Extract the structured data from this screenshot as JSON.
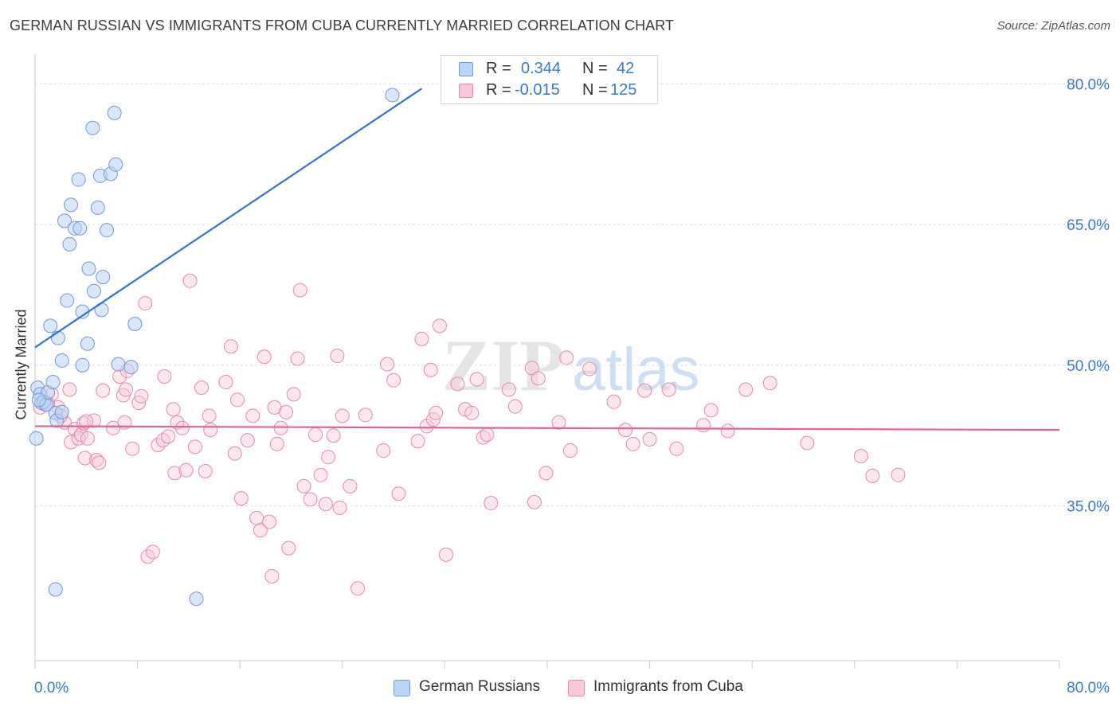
{
  "title": "GERMAN RUSSIAN VS IMMIGRANTS FROM CUBA CURRENTLY MARRIED CORRELATION CHART",
  "source": "Source: ZipAtlas.com",
  "watermark": {
    "zip": "ZIP",
    "atlas": "atlas"
  },
  "legend": {
    "rows": [
      {
        "r_label": "R =",
        "r_value": "0.344",
        "n_label": "N =",
        "n_value": "42",
        "color": "#6d9ad6"
      },
      {
        "r_label": "R =",
        "r_value": "-0.015",
        "n_label": "N =",
        "n_value": "125",
        "color": "#e58aa9"
      }
    ]
  },
  "bottom_legend": [
    {
      "label": "German Russians",
      "color": "#6d9ad6"
    },
    {
      "label": "Immigrants from Cuba",
      "color": "#e58aa9"
    }
  ],
  "chart_data": {
    "type": "scatter",
    "title": "GERMAN RUSSIAN VS IMMIGRANTS FROM CUBA CURRENTLY MARRIED CORRELATION CHART",
    "xlabel": "",
    "ylabel": "Currently Married",
    "xlim": [
      0,
      80
    ],
    "ylim": [
      18.5,
      83
    ],
    "x_tick_labels": [
      "0.0%",
      "80.0%"
    ],
    "y_ticks": [
      {
        "value": 80,
        "label": "80.0%"
      },
      {
        "value": 65,
        "label": "65.0%"
      },
      {
        "value": 50,
        "label": "50.0%"
      },
      {
        "value": 35,
        "label": "35.0%"
      }
    ],
    "series": [
      {
        "name": "German Russians",
        "color": "#6d9ad6",
        "fill": "rgba(188,212,245,0.55)",
        "trend": {
          "x": [
            0,
            30.2
          ],
          "y": [
            51.9,
            79.5
          ]
        },
        "points": [
          [
            0.1,
            42.2
          ],
          [
            0.2,
            47.6
          ],
          [
            0.4,
            46.9
          ],
          [
            0.5,
            46.0
          ],
          [
            0.7,
            46.1
          ],
          [
            0.9,
            45.8
          ],
          [
            1.0,
            47.1
          ],
          [
            1.4,
            48.2
          ],
          [
            1.2,
            54.2
          ],
          [
            1.8,
            52.9
          ],
          [
            1.6,
            44.9
          ],
          [
            1.7,
            44.1
          ],
          [
            2.1,
            45.0
          ],
          [
            2.1,
            50.5
          ],
          [
            2.3,
            65.4
          ],
          [
            2.5,
            56.9
          ],
          [
            2.7,
            62.9
          ],
          [
            2.8,
            67.1
          ],
          [
            3.1,
            64.6
          ],
          [
            3.4,
            69.8
          ],
          [
            3.5,
            64.6
          ],
          [
            3.7,
            55.7
          ],
          [
            3.7,
            50.0
          ],
          [
            4.1,
            52.3
          ],
          [
            4.2,
            60.3
          ],
          [
            4.5,
            75.3
          ],
          [
            4.6,
            57.9
          ],
          [
            4.9,
            66.8
          ],
          [
            5.1,
            70.2
          ],
          [
            5.2,
            55.9
          ],
          [
            5.3,
            59.4
          ],
          [
            5.6,
            64.4
          ],
          [
            5.9,
            70.4
          ],
          [
            6.2,
            76.9
          ],
          [
            6.3,
            71.4
          ],
          [
            6.5,
            50.1
          ],
          [
            7.5,
            49.8
          ],
          [
            7.8,
            54.4
          ],
          [
            1.6,
            26.1
          ],
          [
            12.6,
            25.1
          ],
          [
            27.9,
            78.8
          ],
          [
            0.3,
            46.3
          ]
        ]
      },
      {
        "name": "Immigrants from Cuba",
        "color": "#e58aa9",
        "fill": "rgba(249,201,216,0.45)",
        "trend": {
          "x": [
            0,
            80
          ],
          "y": [
            43.5,
            43.1
          ]
        },
        "points": [
          [
            0.8,
            45.8
          ],
          [
            1.3,
            46.9
          ],
          [
            1.8,
            45.5
          ],
          [
            2.3,
            43.9
          ],
          [
            2.7,
            47.4
          ],
          [
            2.8,
            41.8
          ],
          [
            3.1,
            43.2
          ],
          [
            3.4,
            42.2
          ],
          [
            3.6,
            42.6
          ],
          [
            3.8,
            43.8
          ],
          [
            3.9,
            40.1
          ],
          [
            4.1,
            42.2
          ],
          [
            4.6,
            44.1
          ],
          [
            4.8,
            39.9
          ],
          [
            5.0,
            39.6
          ],
          [
            5.3,
            47.3
          ],
          [
            6.1,
            43.3
          ],
          [
            6.6,
            48.8
          ],
          [
            6.9,
            46.8
          ],
          [
            7.1,
            47.4
          ],
          [
            7.2,
            49.4
          ],
          [
            7.6,
            41.1
          ],
          [
            8.1,
            46.0
          ],
          [
            8.3,
            46.7
          ],
          [
            8.6,
            56.6
          ],
          [
            8.8,
            29.6
          ],
          [
            9.2,
            30.1
          ],
          [
            9.6,
            41.5
          ],
          [
            10.0,
            42.0
          ],
          [
            10.1,
            48.8
          ],
          [
            10.4,
            42.4
          ],
          [
            10.8,
            45.3
          ],
          [
            10.9,
            38.5
          ],
          [
            11.1,
            43.9
          ],
          [
            11.5,
            43.3
          ],
          [
            11.8,
            38.8
          ],
          [
            12.1,
            59.0
          ],
          [
            12.5,
            41.3
          ],
          [
            13.0,
            47.6
          ],
          [
            13.3,
            38.7
          ],
          [
            13.6,
            44.6
          ],
          [
            13.7,
            43.1
          ],
          [
            14.9,
            48.2
          ],
          [
            15.3,
            52.0
          ],
          [
            15.6,
            40.6
          ],
          [
            15.8,
            46.3
          ],
          [
            16.1,
            35.8
          ],
          [
            16.6,
            42.0
          ],
          [
            17.0,
            44.6
          ],
          [
            17.3,
            33.7
          ],
          [
            17.6,
            32.4
          ],
          [
            17.9,
            50.9
          ],
          [
            18.3,
            33.3
          ],
          [
            18.5,
            27.5
          ],
          [
            18.7,
            45.5
          ],
          [
            18.9,
            41.6
          ],
          [
            19.2,
            43.3
          ],
          [
            19.6,
            45.0
          ],
          [
            19.8,
            30.5
          ],
          [
            20.2,
            46.9
          ],
          [
            20.5,
            50.7
          ],
          [
            20.7,
            58.0
          ],
          [
            21.0,
            37.1
          ],
          [
            21.5,
            35.7
          ],
          [
            21.9,
            42.6
          ],
          [
            22.3,
            38.3
          ],
          [
            22.7,
            35.2
          ],
          [
            22.9,
            40.2
          ],
          [
            23.3,
            42.5
          ],
          [
            23.6,
            51.0
          ],
          [
            23.8,
            34.8
          ],
          [
            24.0,
            44.6
          ],
          [
            24.6,
            37.1
          ],
          [
            25.2,
            26.2
          ],
          [
            25.8,
            44.7
          ],
          [
            27.2,
            40.9
          ],
          [
            27.5,
            50.1
          ],
          [
            28.0,
            48.4
          ],
          [
            28.4,
            36.3
          ],
          [
            29.9,
            41.9
          ],
          [
            30.2,
            52.8
          ],
          [
            30.6,
            43.5
          ],
          [
            30.9,
            49.5
          ],
          [
            31.1,
            44.2
          ],
          [
            31.3,
            44.9
          ],
          [
            31.6,
            54.2
          ],
          [
            32.1,
            29.8
          ],
          [
            33.0,
            48.0
          ],
          [
            33.6,
            45.3
          ],
          [
            34.1,
            44.9
          ],
          [
            34.5,
            48.5
          ],
          [
            35.0,
            42.3
          ],
          [
            35.3,
            42.6
          ],
          [
            35.6,
            35.3
          ],
          [
            37.0,
            47.4
          ],
          [
            37.5,
            45.6
          ],
          [
            38.8,
            49.7
          ],
          [
            39.0,
            35.4
          ],
          [
            39.3,
            48.6
          ],
          [
            39.9,
            38.5
          ],
          [
            40.9,
            43.9
          ],
          [
            41.5,
            50.8
          ],
          [
            41.8,
            40.9
          ],
          [
            43.3,
            49.6
          ],
          [
            45.2,
            46.1
          ],
          [
            46.1,
            43.1
          ],
          [
            46.7,
            41.6
          ],
          [
            47.6,
            47.3
          ],
          [
            48.0,
            42.1
          ],
          [
            49.5,
            47.4
          ],
          [
            50.1,
            41.1
          ],
          [
            52.2,
            43.6
          ],
          [
            52.8,
            45.2
          ],
          [
            54.1,
            43.0
          ],
          [
            55.5,
            47.4
          ],
          [
            57.4,
            48.1
          ],
          [
            60.3,
            41.7
          ],
          [
            64.5,
            40.3
          ],
          [
            65.4,
            38.2
          ],
          [
            67.4,
            38.3
          ],
          [
            0.4,
            45.5
          ],
          [
            1.0,
            45.9
          ],
          [
            2.0,
            44.6
          ],
          [
            4.0,
            44.0
          ],
          [
            7.0,
            43.9
          ]
        ]
      }
    ]
  }
}
